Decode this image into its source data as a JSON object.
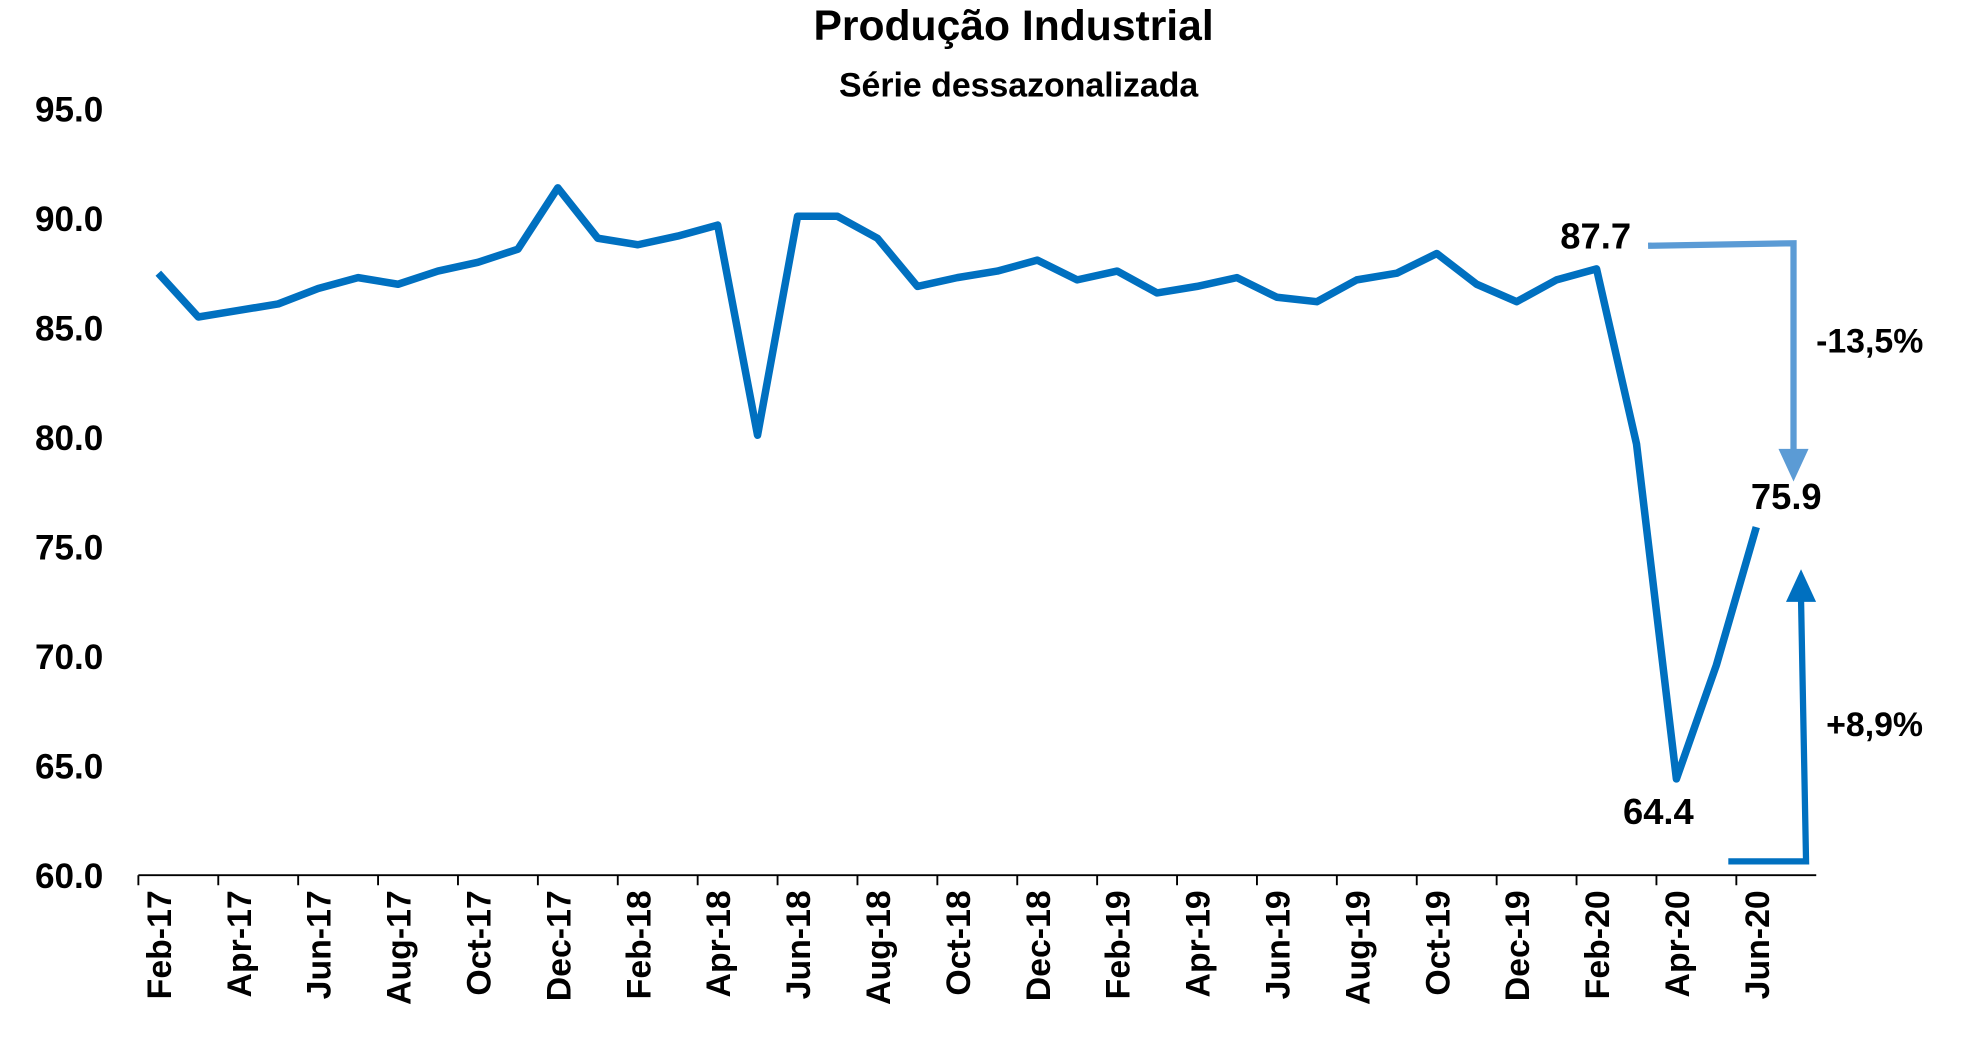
{
  "chart_data": {
    "type": "line",
    "title": "Produção Industrial",
    "subtitle": "Série dessazonalizada",
    "categories": [
      "Feb-17",
      null,
      "Apr-17",
      null,
      "Jun-17",
      null,
      "Aug-17",
      null,
      "Oct-17",
      null,
      "Dec-17",
      null,
      "Feb-18",
      null,
      "Apr-18",
      null,
      "Jun-18",
      null,
      "Aug-18",
      null,
      "Oct-18",
      null,
      "Dec-18",
      null,
      "Feb-19",
      null,
      "Apr-19",
      null,
      "Jun-19",
      null,
      "Aug-19",
      null,
      "Oct-19",
      null,
      "Dec-19",
      null,
      "Feb-20",
      null,
      "Apr-20",
      null,
      "Jun-20",
      null
    ],
    "series": [
      {
        "name": "Produção Industrial",
        "color": "#0070c0",
        "values": [
          87.5,
          85.5,
          85.8,
          86.1,
          86.8,
          87.3,
          87.0,
          87.6,
          88.0,
          88.6,
          91.4,
          89.1,
          88.8,
          89.2,
          89.7,
          80.1,
          90.1,
          90.1,
          89.1,
          86.9,
          87.3,
          87.6,
          88.1,
          87.2,
          87.6,
          86.6,
          86.9,
          87.3,
          86.4,
          86.2,
          87.2,
          87.5,
          88.4,
          87.0,
          86.2,
          87.2,
          87.7,
          79.7,
          64.4,
          69.6,
          75.9,
          null
        ]
      }
    ],
    "ylim": [
      60,
      95
    ],
    "yticks": [
      {
        "value": 60,
        "label": "60.0"
      },
      {
        "value": 65,
        "label": "65.0"
      },
      {
        "value": 70,
        "label": "70.0"
      },
      {
        "value": 75,
        "label": "75.0"
      },
      {
        "value": 80,
        "label": "80.0"
      },
      {
        "value": 85,
        "label": "85.0"
      },
      {
        "value": 90,
        "label": "90.0"
      },
      {
        "value": 95,
        "label": "95.0"
      }
    ],
    "annotations": [
      "87.7",
      "75.9",
      "64.4",
      "-13,5%",
      "+8,9%"
    ]
  }
}
